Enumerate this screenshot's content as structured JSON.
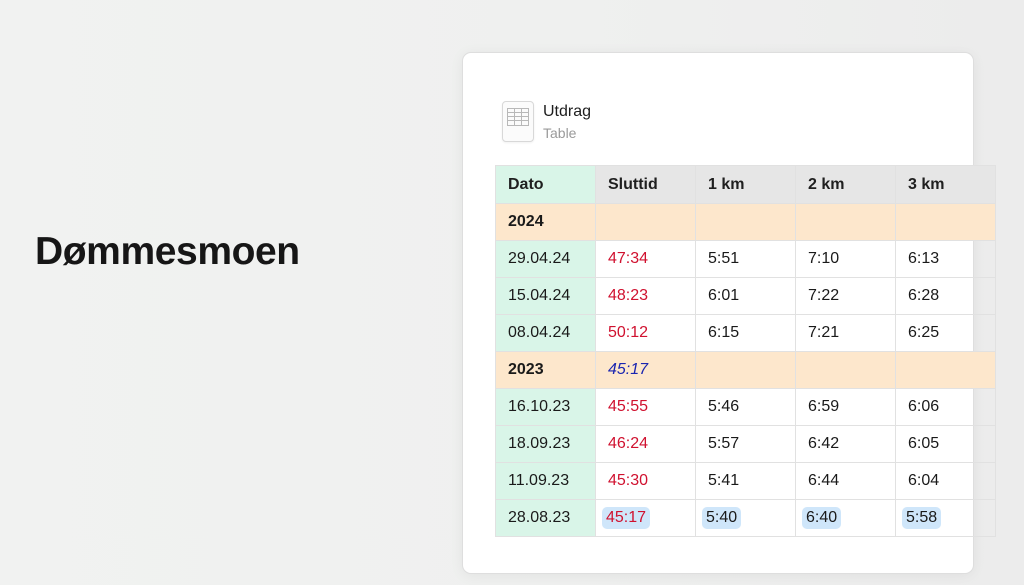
{
  "page": {
    "title": "Dømmesmoen"
  },
  "block": {
    "title": "Utdrag",
    "subtitle": "Table",
    "icon": "table-icon"
  },
  "table": {
    "headers": [
      "Dato",
      "Sluttid",
      "1 km",
      "2 km",
      "3 km"
    ],
    "rows": [
      {
        "kind": "year",
        "cells": [
          "2024",
          "",
          "",
          "",
          ""
        ]
      },
      {
        "kind": "data",
        "cells": [
          "29.04.24",
          "47:34",
          "5:51",
          "7:10",
          "6:13"
        ]
      },
      {
        "kind": "data",
        "cells": [
          "15.04.24",
          "48:23",
          "6:01",
          "7:22",
          "6:28"
        ]
      },
      {
        "kind": "data",
        "cells": [
          "08.04.24",
          "50:12",
          "6:15",
          "7:21",
          "6:25"
        ]
      },
      {
        "kind": "year",
        "cells": [
          "2023",
          "45:17",
          "",
          "",
          ""
        ]
      },
      {
        "kind": "data",
        "cells": [
          "16.10.23",
          "45:55",
          "5:46",
          "6:59",
          "6:06"
        ]
      },
      {
        "kind": "data",
        "cells": [
          "18.09.23",
          "46:24",
          "5:57",
          "6:42",
          "6:05"
        ]
      },
      {
        "kind": "data",
        "cells": [
          "11.09.23",
          "45:30",
          "5:41",
          "6:44",
          "6:04"
        ]
      },
      {
        "kind": "data",
        "highlight": true,
        "cells": [
          "28.08.23",
          "45:17",
          "5:40",
          "6:40",
          "5:58"
        ]
      }
    ]
  },
  "colors": {
    "date_column": "#d9f5e8",
    "year_row": "#fde7cc",
    "header": "#e6e6e6",
    "finish_time": "#d0112f",
    "year_best": "#1a25b0",
    "best_highlight": "#cfe6fa"
  }
}
